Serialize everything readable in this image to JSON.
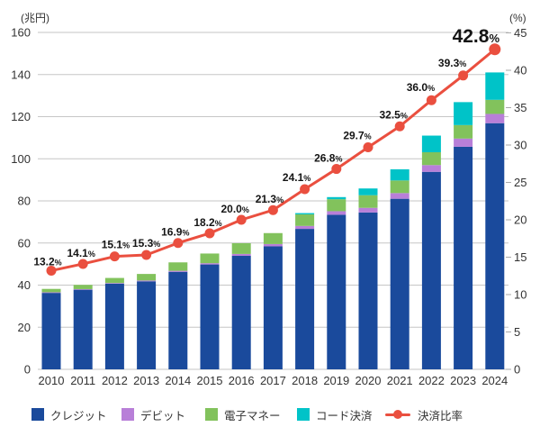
{
  "chart_data": {
    "type": "bar",
    "subtype": "stacked-bars-with-ratio-line",
    "categories": [
      "2010",
      "2011",
      "2012",
      "2013",
      "2014",
      "2015",
      "2016",
      "2017",
      "2018",
      "2019",
      "2020",
      "2021",
      "2022",
      "2023",
      "2024"
    ],
    "series": [
      {
        "name": "クレジット",
        "color": "#1a4a9c",
        "values": [
          36.3,
          37.8,
          40.7,
          41.8,
          46.3,
          49.8,
          53.9,
          58.4,
          66.7,
          73.4,
          74.5,
          81.0,
          93.8,
          105.7,
          116.9
        ]
      },
      {
        "name": "デビット",
        "color": "#b87fd8",
        "values": [
          0.3,
          0.3,
          0.3,
          0.4,
          0.5,
          0.6,
          0.9,
          1.1,
          1.4,
          1.7,
          2.2,
          2.7,
          3.2,
          3.9,
          4.4
        ]
      },
      {
        "name": "電子マネー",
        "color": "#82c25c",
        "values": [
          1.6,
          2.0,
          2.4,
          3.1,
          4.0,
          4.6,
          5.1,
          5.2,
          5.5,
          5.7,
          6.0,
          6.0,
          6.1,
          6.4,
          6.7
        ]
      },
      {
        "name": "コード決済",
        "color": "#00c3c8",
        "values": [
          0,
          0,
          0,
          0,
          0,
          0,
          0,
          0,
          0.6,
          1.0,
          3.2,
          5.3,
          7.9,
          10.9,
          13.0
        ]
      }
    ],
    "line_series": {
      "name": "決済比率",
      "color": "#ea4f3f",
      "unit": "%",
      "values": [
        13.2,
        14.1,
        15.1,
        15.3,
        16.9,
        18.2,
        20.0,
        21.3,
        24.1,
        26.8,
        29.7,
        32.5,
        36.0,
        39.3,
        42.8
      ],
      "emphasized_last_label": "42.8%"
    },
    "left_axis": {
      "unit": "(兆円)",
      "min": 0,
      "max": 160,
      "step": 20,
      "ticks": [
        0,
        20,
        40,
        60,
        80,
        100,
        120,
        140,
        160
      ]
    },
    "right_axis": {
      "unit": "(%)",
      "min": 0,
      "max": 45,
      "step": 5,
      "ticks": [
        0,
        5,
        10,
        15,
        20,
        25,
        30,
        35,
        40,
        45
      ]
    },
    "grid": "horizontal",
    "legend_position": "bottom",
    "colors": {
      "grid": "#c6c6c6",
      "tick_text": "#333333",
      "label_text": "#141414"
    }
  }
}
